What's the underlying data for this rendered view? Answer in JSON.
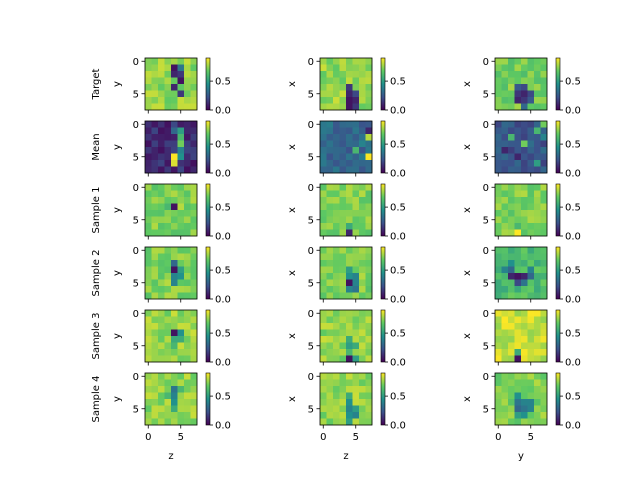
{
  "figure": {
    "row_labels": [
      "Target",
      "Mean",
      "Sample 1",
      "Sample 2",
      "Sample 3",
      "Sample 4"
    ],
    "column_xlabels": [
      "z",
      "z",
      "y"
    ],
    "column_ylabels": [
      "y",
      "x",
      "x"
    ],
    "x_ticks": [
      "0",
      "5"
    ],
    "y_ticks": [
      "0",
      "5"
    ],
    "colorbar_ticks": [
      "0.0",
      "0.5"
    ]
  },
  "chart_data": {
    "type": "heatmap",
    "grid_shape": [
      8,
      8
    ],
    "colormap": "viridis",
    "color_range": [
      0.0,
      0.9
    ],
    "rows": [
      "Target",
      "Mean",
      "Sample 1",
      "Sample 2",
      "Sample 3",
      "Sample 4"
    ],
    "columns": [
      {
        "xlabel": "z",
        "ylabel": "y"
      },
      {
        "xlabel": "z",
        "ylabel": "x"
      },
      {
        "xlabel": "y",
        "ylabel": "x"
      }
    ],
    "panels": [
      [
        {
          "base": 0.75,
          "features": [
            {
              "r": 1,
              "c": 4,
              "v": 0.05
            },
            {
              "r": 2,
              "c": 4,
              "v": 0.1
            },
            {
              "r": 2,
              "c": 5,
              "v": 0.15
            },
            {
              "r": 3,
              "c": 5,
              "v": 0.05
            },
            {
              "r": 4,
              "c": 4,
              "v": 0.1
            },
            {
              "r": 5,
              "c": 5,
              "v": 0.15
            },
            {
              "r": 1,
              "c": 5,
              "v": 0.35
            }
          ]
        },
        {
          "base": 0.75,
          "features": [
            {
              "r": 4,
              "c": 4,
              "v": 0.15
            },
            {
              "r": 5,
              "c": 4,
              "v": 0.1
            },
            {
              "r": 6,
              "c": 4,
              "v": 0.05
            },
            {
              "r": 7,
              "c": 4,
              "v": 0.05
            },
            {
              "r": 5,
              "c": 5,
              "v": 0.2
            },
            {
              "r": 6,
              "c": 5,
              "v": 0.1
            },
            {
              "r": 7,
              "c": 5,
              "v": 0.15
            }
          ]
        },
        {
          "base": 0.7,
          "features": [
            {
              "r": 4,
              "c": 3,
              "v": 0.25
            },
            {
              "r": 4,
              "c": 4,
              "v": 0.2
            },
            {
              "r": 5,
              "c": 3,
              "v": 0.15
            },
            {
              "r": 5,
              "c": 4,
              "v": 0.1
            },
            {
              "r": 5,
              "c": 5,
              "v": 0.2
            },
            {
              "r": 6,
              "c": 3,
              "v": 0.1
            },
            {
              "r": 6,
              "c": 4,
              "v": 0.15
            },
            {
              "r": 6,
              "c": 5,
              "v": 0.25
            },
            {
              "r": 7,
              "c": 4,
              "v": 0.3
            }
          ]
        }
      ],
      [
        {
          "base": 0.12,
          "features": [
            {
              "r": 1,
              "c": 4,
              "v": 0.3
            },
            {
              "r": 1,
              "c": 5,
              "v": 0.5
            },
            {
              "r": 2,
              "c": 5,
              "v": 0.6
            },
            {
              "r": 3,
              "c": 5,
              "v": 0.7
            },
            {
              "r": 5,
              "c": 4,
              "v": 0.9
            },
            {
              "r": 6,
              "c": 4,
              "v": 0.85
            },
            {
              "r": 4,
              "c": 5,
              "v": 0.4
            },
            {
              "r": 5,
              "c": 5,
              "v": 0.45
            }
          ]
        },
        {
          "base": 0.3,
          "features": [
            {
              "r": 1,
              "c": 7,
              "v": 0.1
            },
            {
              "r": 2,
              "c": 7,
              "v": 0.8
            },
            {
              "r": 4,
              "c": 5,
              "v": 0.6
            },
            {
              "r": 5,
              "c": 7,
              "v": 0.9
            },
            {
              "r": 3,
              "c": 6,
              "v": 0.4
            }
          ]
        },
        {
          "base": 0.25,
          "features": [
            {
              "r": 0,
              "c": 7,
              "v": 0.7
            },
            {
              "r": 1,
              "c": 6,
              "v": 0.6
            },
            {
              "r": 2,
              "c": 2,
              "v": 0.6
            },
            {
              "r": 3,
              "c": 4,
              "v": 0.7
            },
            {
              "r": 4,
              "c": 1,
              "v": 0.1
            },
            {
              "r": 5,
              "c": 3,
              "v": 0.1
            },
            {
              "r": 6,
              "c": 6,
              "v": 0.5
            },
            {
              "r": 2,
              "c": 7,
              "v": 0.4
            }
          ]
        }
      ],
      [
        {
          "base": 0.72,
          "features": [
            {
              "r": 3,
              "c": 4,
              "v": 0.05
            },
            {
              "r": 3,
              "c": 5,
              "v": 0.8
            },
            {
              "r": 3,
              "c": 3,
              "v": 0.6
            }
          ]
        },
        {
          "base": 0.72,
          "features": [
            {
              "r": 7,
              "c": 4,
              "v": 0.1
            },
            {
              "r": 6,
              "c": 4,
              "v": 0.55
            }
          ]
        },
        {
          "base": 0.72,
          "features": [
            {
              "r": 7,
              "c": 3,
              "v": 0.9
            },
            {
              "r": 6,
              "c": 3,
              "v": 0.6
            }
          ]
        }
      ],
      [
        {
          "base": 0.72,
          "features": [
            {
              "r": 2,
              "c": 4,
              "v": 0.3
            },
            {
              "r": 3,
              "c": 4,
              "v": 0.05
            },
            {
              "r": 3,
              "c": 5,
              "v": 0.5
            },
            {
              "r": 4,
              "c": 4,
              "v": 0.4
            },
            {
              "r": 4,
              "c": 5,
              "v": 0.45
            },
            {
              "r": 5,
              "c": 4,
              "v": 0.4
            }
          ]
        },
        {
          "base": 0.72,
          "features": [
            {
              "r": 3,
              "c": 4,
              "v": 0.5
            },
            {
              "r": 4,
              "c": 4,
              "v": 0.45
            },
            {
              "r": 4,
              "c": 5,
              "v": 0.4
            },
            {
              "r": 5,
              "c": 4,
              "v": 0.05
            },
            {
              "r": 5,
              "c": 5,
              "v": 0.4
            },
            {
              "r": 6,
              "c": 4,
              "v": 0.4
            },
            {
              "r": 6,
              "c": 5,
              "v": 0.35
            }
          ]
        },
        {
          "base": 0.62,
          "features": [
            {
              "r": 2,
              "c": 2,
              "v": 0.45
            },
            {
              "r": 3,
              "c": 1,
              "v": 0.4
            },
            {
              "r": 3,
              "c": 2,
              "v": 0.3
            },
            {
              "r": 3,
              "c": 5,
              "v": 0.4
            },
            {
              "r": 4,
              "c": 2,
              "v": 0.1
            },
            {
              "r": 4,
              "c": 3,
              "v": 0.05
            },
            {
              "r": 4,
              "c": 4,
              "v": 0.1
            },
            {
              "r": 4,
              "c": 5,
              "v": 0.3
            },
            {
              "r": 5,
              "c": 3,
              "v": 0.2
            },
            {
              "r": 5,
              "c": 4,
              "v": 0.35
            }
          ]
        }
      ],
      [
        {
          "base": 0.75,
          "features": [
            {
              "r": 3,
              "c": 4,
              "v": 0.05
            },
            {
              "r": 3,
              "c": 5,
              "v": 0.45
            },
            {
              "r": 4,
              "c": 4,
              "v": 0.55
            },
            {
              "r": 4,
              "c": 5,
              "v": 0.55
            },
            {
              "r": 5,
              "c": 4,
              "v": 0.6
            }
          ]
        },
        {
          "base": 0.75,
          "features": [
            {
              "r": 4,
              "c": 4,
              "v": 0.55
            },
            {
              "r": 5,
              "c": 4,
              "v": 0.5
            },
            {
              "r": 5,
              "c": 5,
              "v": 0.55
            },
            {
              "r": 6,
              "c": 4,
              "v": 0.6
            },
            {
              "r": 7,
              "c": 4,
              "v": 0.05
            },
            {
              "r": 7,
              "c": 5,
              "v": 0.5
            }
          ]
        },
        {
          "base": 0.82,
          "features": [
            {
              "r": 6,
              "c": 3,
              "v": 0.55
            },
            {
              "r": 7,
              "c": 3,
              "v": 0.05
            }
          ]
        }
      ],
      [
        {
          "base": 0.75,
          "features": [
            {
              "r": 2,
              "c": 4,
              "v": 0.35
            },
            {
              "r": 3,
              "c": 4,
              "v": 0.4
            },
            {
              "r": 4,
              "c": 4,
              "v": 0.45
            },
            {
              "r": 5,
              "c": 4,
              "v": 0.55
            },
            {
              "r": 2,
              "c": 5,
              "v": 0.6
            },
            {
              "r": 3,
              "c": 3,
              "v": 0.6
            }
          ]
        },
        {
          "base": 0.75,
          "features": [
            {
              "r": 3,
              "c": 4,
              "v": 0.55
            },
            {
              "r": 4,
              "c": 4,
              "v": 0.45
            },
            {
              "r": 5,
              "c": 4,
              "v": 0.4
            },
            {
              "r": 5,
              "c": 5,
              "v": 0.5
            },
            {
              "r": 6,
              "c": 4,
              "v": 0.45
            },
            {
              "r": 6,
              "c": 5,
              "v": 0.4
            },
            {
              "r": 7,
              "c": 4,
              "v": 0.5
            }
          ]
        },
        {
          "base": 0.72,
          "features": [
            {
              "r": 3,
              "c": 3,
              "v": 0.45
            },
            {
              "r": 4,
              "c": 3,
              "v": 0.35
            },
            {
              "r": 4,
              "c": 4,
              "v": 0.4
            },
            {
              "r": 4,
              "c": 5,
              "v": 0.4
            },
            {
              "r": 5,
              "c": 3,
              "v": 0.3
            },
            {
              "r": 5,
              "c": 4,
              "v": 0.35
            },
            {
              "r": 5,
              "c": 5,
              "v": 0.4
            },
            {
              "r": 6,
              "c": 3,
              "v": 0.5
            },
            {
              "r": 6,
              "c": 4,
              "v": 0.45
            }
          ]
        }
      ]
    ]
  }
}
